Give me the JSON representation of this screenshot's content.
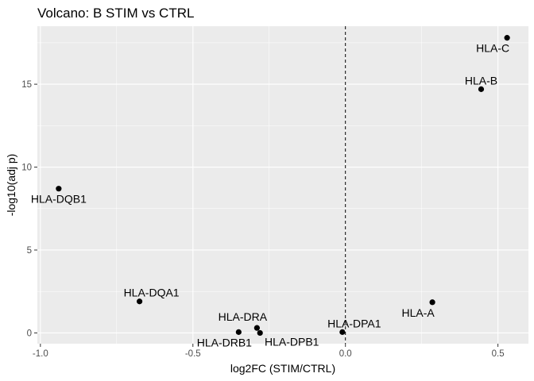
{
  "chart_data": {
    "type": "scatter",
    "title": "Volcano: B STIM vs CTRL",
    "xlabel": "log2FC (STIM/CTRL)",
    "ylabel": "-log10(adj p)",
    "xlim": [
      -1.01,
      0.6
    ],
    "ylim": [
      -0.65,
      18.5
    ],
    "xticks": [
      -1.0,
      -0.5,
      0.0,
      0.5
    ],
    "xtick_labels": [
      "-1.0",
      "-0.5",
      "0.0",
      "0.5"
    ],
    "yticks": [
      0,
      5,
      10,
      15
    ],
    "ytick_labels": [
      "0",
      "5",
      "10",
      "15"
    ],
    "vline": {
      "x": 0,
      "style": "dashed"
    },
    "grid": true,
    "points": [
      {
        "label": "HLA-C",
        "x": 0.53,
        "y": 17.8,
        "label_pos": "below-left"
      },
      {
        "label": "HLA-B",
        "x": 0.445,
        "y": 14.7,
        "label_pos": "above"
      },
      {
        "label": "HLA-DQB1",
        "x": -0.94,
        "y": 8.7,
        "label_pos": "below"
      },
      {
        "label": "HLA-DQA1",
        "x": -0.675,
        "y": 1.9,
        "label_pos": "above-right"
      },
      {
        "label": "HLA-A",
        "x": 0.285,
        "y": 1.85,
        "label_pos": "below-left"
      },
      {
        "label": "HLA-DRA",
        "x": -0.29,
        "y": 0.3,
        "label_pos": "above-left"
      },
      {
        "label": "HLA-DRB1",
        "x": -0.35,
        "y": 0.05,
        "label_pos": "below-left"
      },
      {
        "label": "HLA-DPB1",
        "x": -0.28,
        "y": 0.0,
        "label_pos": "below-right"
      },
      {
        "label": "HLA-DPA1",
        "x": -0.01,
        "y": 0.05,
        "label_pos": "above-right"
      }
    ]
  }
}
